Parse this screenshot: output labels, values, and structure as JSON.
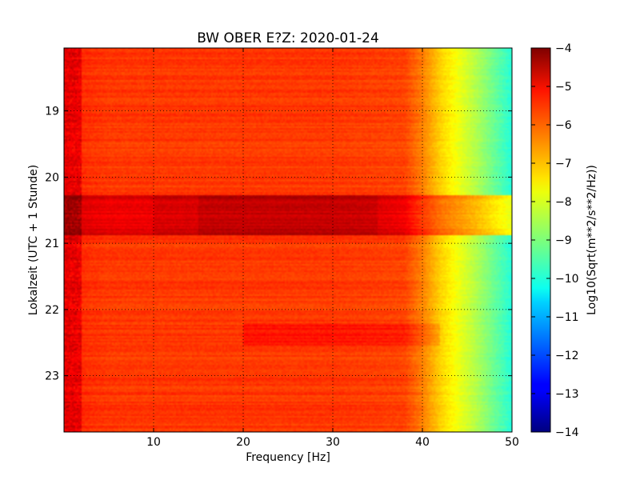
{
  "chart_data": {
    "type": "heatmap",
    "title": "BW OBER E?Z: 2020-01-24",
    "xlabel": "Frequency [Hz]",
    "ylabel": "Lokalzeit (UTC + 1 Stunde)",
    "xlim": [
      0,
      50
    ],
    "ylim": [
      18.05,
      23.85
    ],
    "x_ticks": [
      10,
      20,
      30,
      40,
      50
    ],
    "x_tick_labels": [
      "10",
      "20",
      "30",
      "40",
      "50"
    ],
    "y_ticks": [
      19,
      20,
      21,
      22,
      23
    ],
    "y_tick_labels": [
      "19",
      "20",
      "21",
      "22",
      "23"
    ],
    "grid": true,
    "colormap": "jet",
    "colorbar": {
      "label": "Log10(Sqrt(m**2/s**2/Hz))",
      "range": [
        -14,
        -4
      ],
      "ticks": [
        -4,
        -5,
        -6,
        -7,
        -8,
        -9,
        -10,
        -11,
        -12,
        -13,
        -14
      ],
      "tick_labels": [
        "−4",
        "−5",
        "−6",
        "−7",
        "−8",
        "−9",
        "−10",
        "−11",
        "−12",
        "−13",
        "−14"
      ]
    },
    "frequency_profile": {
      "frequency_hz": [
        0,
        5,
        10,
        20,
        30,
        38,
        40,
        42,
        44,
        46,
        48,
        50
      ],
      "level": [
        -5.6,
        -5.8,
        -5.8,
        -5.8,
        -5.8,
        -5.9,
        -6.5,
        -7.3,
        -7.9,
        -8.5,
        -9.2,
        -9.9
      ]
    },
    "high_energy_band": {
      "time_start": 20.27,
      "time_end": 20.88,
      "frequency_start_hz": 0,
      "frequency_end_hz": 50,
      "peak_level": -4.5,
      "peak_frequency_range_hz": [
        15,
        35
      ]
    },
    "moderate_band": {
      "time_start": 22.2,
      "time_end": 22.55,
      "frequency_range_hz": [
        20,
        42
      ],
      "level": -5.3
    }
  }
}
